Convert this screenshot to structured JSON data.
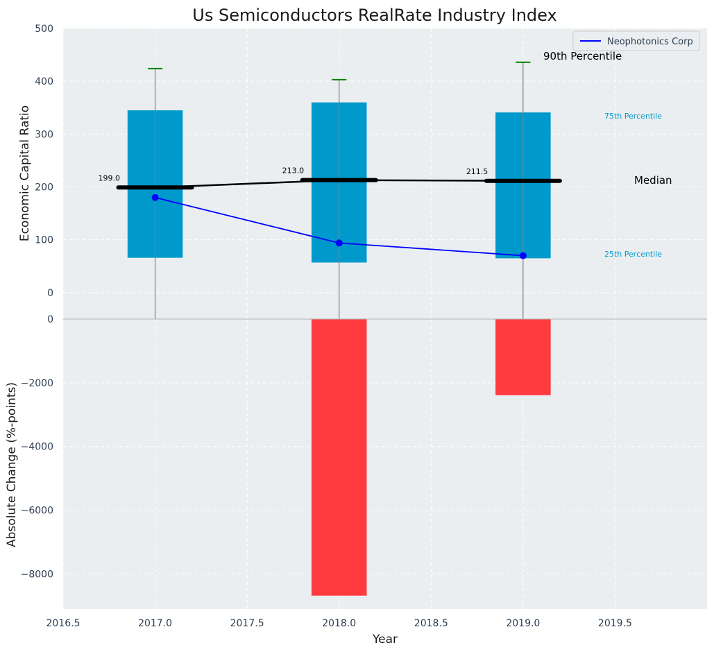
{
  "chart_data": [
    {
      "type": "bar",
      "title": "Us Semiconductors RealRate Industry Index",
      "ylabel": "Economic Capital Ratio",
      "xlabel": "",
      "x_ticks": [
        "2016.5",
        "2017.0",
        "2017.5",
        "2018.0",
        "2018.5",
        "2019.0",
        "2019.5"
      ],
      "y_ticks": [
        "0",
        "100",
        "200",
        "300",
        "400",
        "500"
      ],
      "xlim": [
        2016.5,
        2020.0
      ],
      "ylim": [
        -50,
        500
      ],
      "grid": true,
      "legend_position": "top-right",
      "years": [
        2017,
        2018,
        2019
      ],
      "p25": [
        66,
        57,
        65
      ],
      "p75": [
        345,
        360,
        341
      ],
      "p90": [
        424,
        403,
        436
      ],
      "median": [
        199.0,
        213.0,
        211.5
      ],
      "median_labels": [
        "199.0",
        "213.0",
        "211.5"
      ],
      "series": [
        {
          "name": "Neophotonics Corp",
          "values": [
            180,
            94,
            70
          ],
          "color": "#0000ff"
        }
      ],
      "annotations": {
        "p90": "90th Percentile",
        "p75": "75th Percentile",
        "median": "Median",
        "p25": "25th Percentile"
      },
      "colors": {
        "box": "#0099cc",
        "whisker_cap": "#008000",
        "median": "#000000",
        "background": "#eaeef0"
      }
    },
    {
      "type": "bar",
      "title": "",
      "ylabel": "Absolute Change (%-points)",
      "xlabel": "Year",
      "x_ticks": [
        "2016.5",
        "2017.0",
        "2017.5",
        "2018.0",
        "2018.5",
        "2019.0",
        "2019.5"
      ],
      "y_ticks": [
        "0",
        "−2000",
        "−4000",
        "−6000",
        "−8000"
      ],
      "xlim": [
        2016.5,
        2020.0
      ],
      "ylim": [
        -9100,
        0
      ],
      "grid": true,
      "categories": [
        2018,
        2019
      ],
      "values": [
        -8680,
        -2390
      ],
      "colors": {
        "bar": "#ff3b3f",
        "background": "#eaeef0"
      }
    }
  ]
}
